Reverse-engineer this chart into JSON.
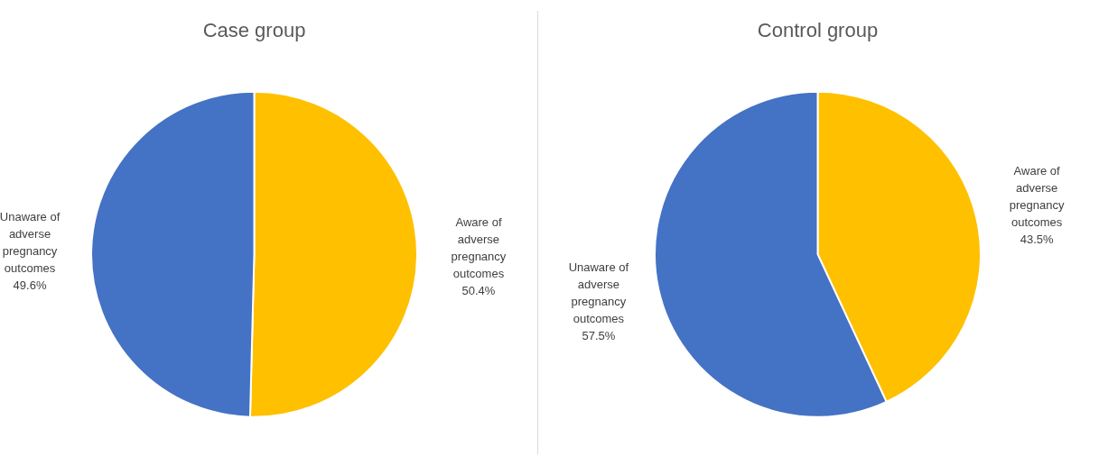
{
  "chart_data": [
    {
      "type": "pie",
      "title": "Case group",
      "categories": [
        "Aware of adverse pregnancy outcomes",
        "Unaware of adverse pregnancy outcomes"
      ],
      "values": [
        50.4,
        49.6
      ],
      "value_labels": [
        "50.4%",
        "49.6%"
      ],
      "colors": [
        "#ffc000",
        "#4472c4"
      ],
      "legend": false
    },
    {
      "type": "pie",
      "title": "Control group",
      "categories": [
        "Aware of adverse pregnancy outcomes",
        "Unaware of adverse pregnancy outcomes"
      ],
      "values": [
        43.5,
        57.5
      ],
      "value_labels": [
        "43.5%",
        "57.5%"
      ],
      "colors": [
        "#ffc000",
        "#4472c4"
      ],
      "legend": false
    }
  ]
}
